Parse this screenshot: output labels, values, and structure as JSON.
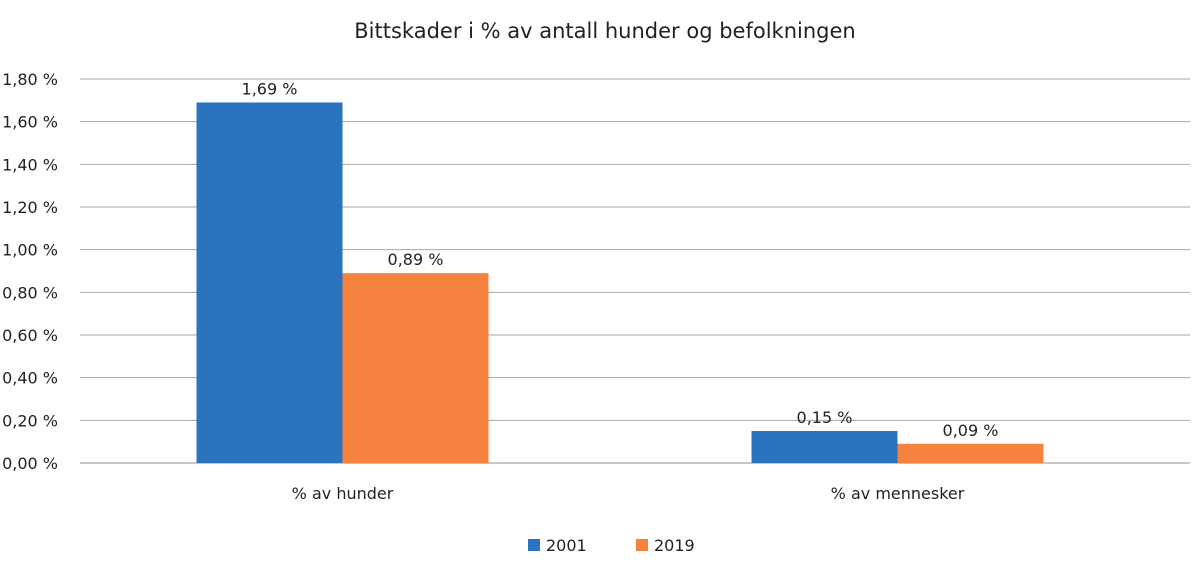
{
  "chart_data": {
    "type": "bar",
    "title": "Bittskader i % av antall hunder og befolkningen",
    "categories": [
      "% av hunder",
      "% av mennesker"
    ],
    "series": [
      {
        "name": "2001",
        "values": [
          1.69,
          0.15
        ],
        "labels": [
          "1,69 %",
          "0,15 %"
        ],
        "color": "#2a74bd"
      },
      {
        "name": "2019",
        "values": [
          0.89,
          0.09
        ],
        "labels": [
          "0,89 %",
          "0,09 %"
        ],
        "color": "#f5823f"
      }
    ],
    "ylim": [
      0,
      1.8
    ],
    "yticks": [
      0,
      0.2,
      0.4,
      0.6,
      0.8,
      1.0,
      1.2,
      1.4,
      1.6,
      1.8
    ],
    "ytick_labels": [
      "0,00 %",
      "0,20 %",
      "0,40 %",
      "0,60 %",
      "0,80 %",
      "1,00 %",
      "1,20 %",
      "1,40 %",
      "1,60 %",
      "1,80 %"
    ],
    "grid": true,
    "legend": "bottom",
    "xlabel": "",
    "ylabel": ""
  }
}
